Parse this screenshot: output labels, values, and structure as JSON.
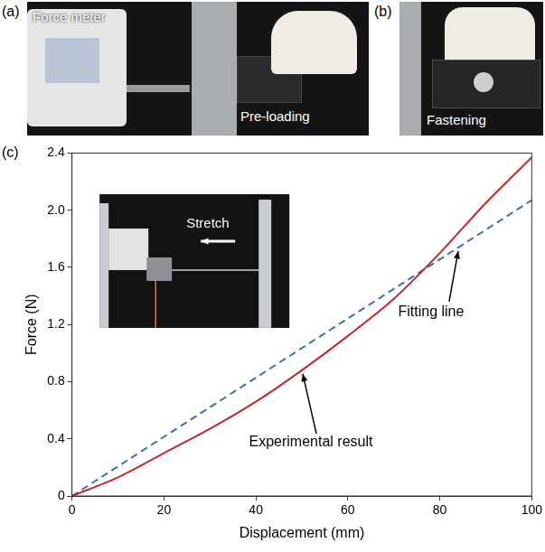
{
  "photos": [
    {
      "label": "(a)",
      "texts": [
        "Force meter",
        "Pre-loading"
      ]
    },
    {
      "label": "(b)",
      "texts": [
        "Fastening"
      ]
    }
  ],
  "chart_data": {
    "label": "(c)",
    "type": "line",
    "x_label": "Displacement (mm)",
    "y_label": "Force (N)",
    "xlim": [
      0,
      100
    ],
    "ylim": [
      0,
      2.4
    ],
    "xticks": [
      0,
      20,
      40,
      60,
      80,
      100
    ],
    "yticks": [
      0,
      0.4,
      0.8,
      1.2,
      1.6,
      {
        "value": 2,
        "label": "2.0"
      },
      2.4
    ],
    "grid": false,
    "inset_text": "Stretch",
    "series": [
      {
        "name": "Experimental result",
        "color": "#c0282e",
        "line_style": "solid",
        "x": [
          0,
          10,
          20,
          30,
          40,
          50,
          60,
          70,
          80,
          90,
          100
        ],
        "values": [
          0,
          0.13,
          0.3,
          0.47,
          0.66,
          0.88,
          1.12,
          1.38,
          1.7,
          2.05,
          2.37
        ]
      },
      {
        "name": "Fitting line",
        "color": "#3a6fb5",
        "line_style": "dashed",
        "x": [
          0,
          100
        ],
        "values": [
          0,
          2.07
        ]
      }
    ]
  }
}
